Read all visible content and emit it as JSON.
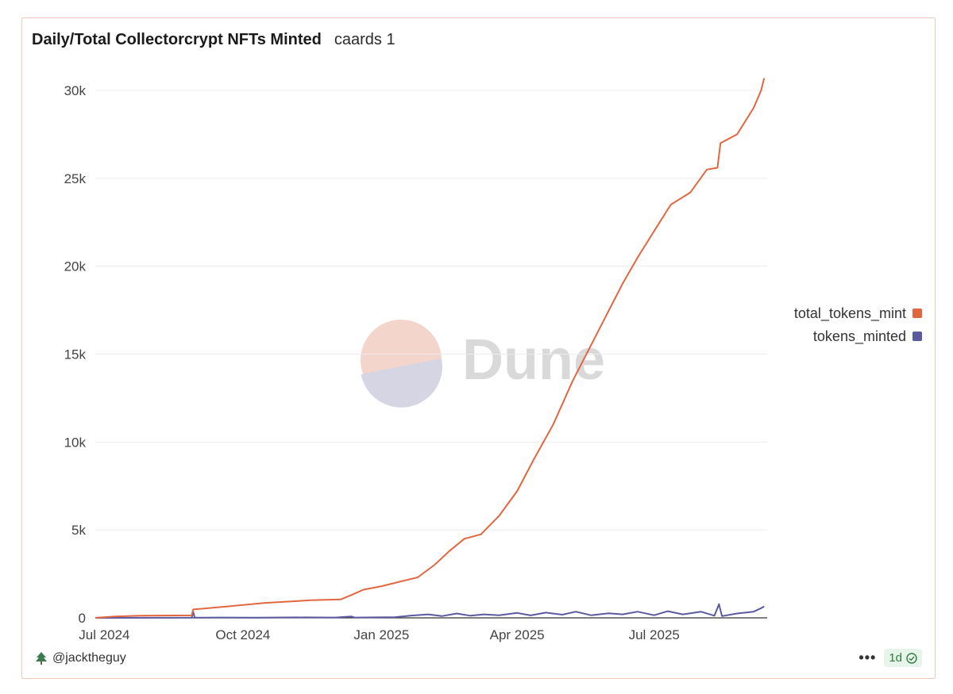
{
  "header": {
    "title": "Daily/Total Collectorcrypt NFTs Minted",
    "subtitle": "caards 1"
  },
  "watermark": {
    "text": "Dune"
  },
  "footer": {
    "author": "@jacktheguy",
    "more": "•••",
    "refresh": "1d"
  },
  "colors": {
    "total": "#e0673f",
    "daily": "#5b5aa0",
    "grid": "#ececec",
    "border": "#f0c9b8"
  },
  "chart_data": {
    "type": "line",
    "ylim": [
      0,
      30000
    ],
    "yticks": [
      0,
      5000,
      10000,
      15000,
      20000,
      25000,
      30000
    ],
    "ytick_labels": [
      "0",
      "5k",
      "10k",
      "15k",
      "20k",
      "25k",
      "30k"
    ],
    "xlim": [
      "2024-06-25",
      "2025-09-14"
    ],
    "xticks": [
      "2024-07-01",
      "2024-10-01",
      "2025-01-01",
      "2025-04-01",
      "2025-07-01"
    ],
    "xtick_labels": [
      "Jul 2024",
      "Oct 2024",
      "Jan 2025",
      "Apr 2025",
      "Jul 2025"
    ],
    "legend_position": "right",
    "series": [
      {
        "name": "total_tokens_mint",
        "color": "#e0673f",
        "points": [
          [
            "2024-06-25",
            0
          ],
          [
            "2024-07-08",
            80
          ],
          [
            "2024-07-25",
            120
          ],
          [
            "2024-08-28",
            140
          ],
          [
            "2024-08-29",
            480
          ],
          [
            "2024-09-20",
            640
          ],
          [
            "2024-10-15",
            850
          ],
          [
            "2024-11-15",
            1000
          ],
          [
            "2024-12-05",
            1050
          ],
          [
            "2024-12-12",
            1300
          ],
          [
            "2024-12-20",
            1600
          ],
          [
            "2025-01-01",
            1800
          ],
          [
            "2025-01-15",
            2100
          ],
          [
            "2025-01-25",
            2300
          ],
          [
            "2025-02-05",
            3000
          ],
          [
            "2025-02-15",
            3800
          ],
          [
            "2025-02-25",
            4500
          ],
          [
            "2025-03-08",
            4750
          ],
          [
            "2025-03-20",
            5800
          ],
          [
            "2025-04-01",
            7200
          ],
          [
            "2025-04-12",
            9000
          ],
          [
            "2025-04-25",
            11000
          ],
          [
            "2025-05-08",
            13500
          ],
          [
            "2025-05-20",
            15500
          ],
          [
            "2025-06-01",
            17500
          ],
          [
            "2025-06-10",
            19000
          ],
          [
            "2025-06-20",
            20500
          ],
          [
            "2025-07-01",
            22000
          ],
          [
            "2025-07-12",
            23500
          ],
          [
            "2025-07-25",
            24200
          ],
          [
            "2025-08-05",
            25500
          ],
          [
            "2025-08-12",
            25600
          ],
          [
            "2025-08-14",
            27000
          ],
          [
            "2025-08-25",
            27500
          ],
          [
            "2025-09-05",
            29000
          ],
          [
            "2025-09-10",
            30000
          ],
          [
            "2025-09-12",
            30700
          ]
        ]
      },
      {
        "name": "tokens_minted",
        "color": "#5b5aa0",
        "points": [
          [
            "2024-06-25",
            0
          ],
          [
            "2024-08-28",
            10
          ],
          [
            "2024-08-29",
            340
          ],
          [
            "2024-08-30",
            10
          ],
          [
            "2024-09-15",
            20
          ],
          [
            "2024-10-10",
            15
          ],
          [
            "2024-11-05",
            25
          ],
          [
            "2024-12-01",
            20
          ],
          [
            "2024-12-12",
            80
          ],
          [
            "2024-12-14",
            20
          ],
          [
            "2025-01-10",
            40
          ],
          [
            "2025-01-20",
            120
          ],
          [
            "2025-02-01",
            200
          ],
          [
            "2025-02-10",
            100
          ],
          [
            "2025-02-20",
            250
          ],
          [
            "2025-03-01",
            120
          ],
          [
            "2025-03-10",
            200
          ],
          [
            "2025-03-20",
            150
          ],
          [
            "2025-04-01",
            280
          ],
          [
            "2025-04-10",
            140
          ],
          [
            "2025-04-20",
            300
          ],
          [
            "2025-05-01",
            180
          ],
          [
            "2025-05-10",
            350
          ],
          [
            "2025-05-20",
            150
          ],
          [
            "2025-06-01",
            260
          ],
          [
            "2025-06-10",
            200
          ],
          [
            "2025-06-20",
            350
          ],
          [
            "2025-07-01",
            150
          ],
          [
            "2025-07-10",
            380
          ],
          [
            "2025-07-20",
            200
          ],
          [
            "2025-08-01",
            350
          ],
          [
            "2025-08-10",
            120
          ],
          [
            "2025-08-13",
            780
          ],
          [
            "2025-08-15",
            100
          ],
          [
            "2025-08-25",
            250
          ],
          [
            "2025-09-05",
            350
          ],
          [
            "2025-09-10",
            550
          ],
          [
            "2025-09-12",
            650
          ]
        ]
      }
    ]
  }
}
